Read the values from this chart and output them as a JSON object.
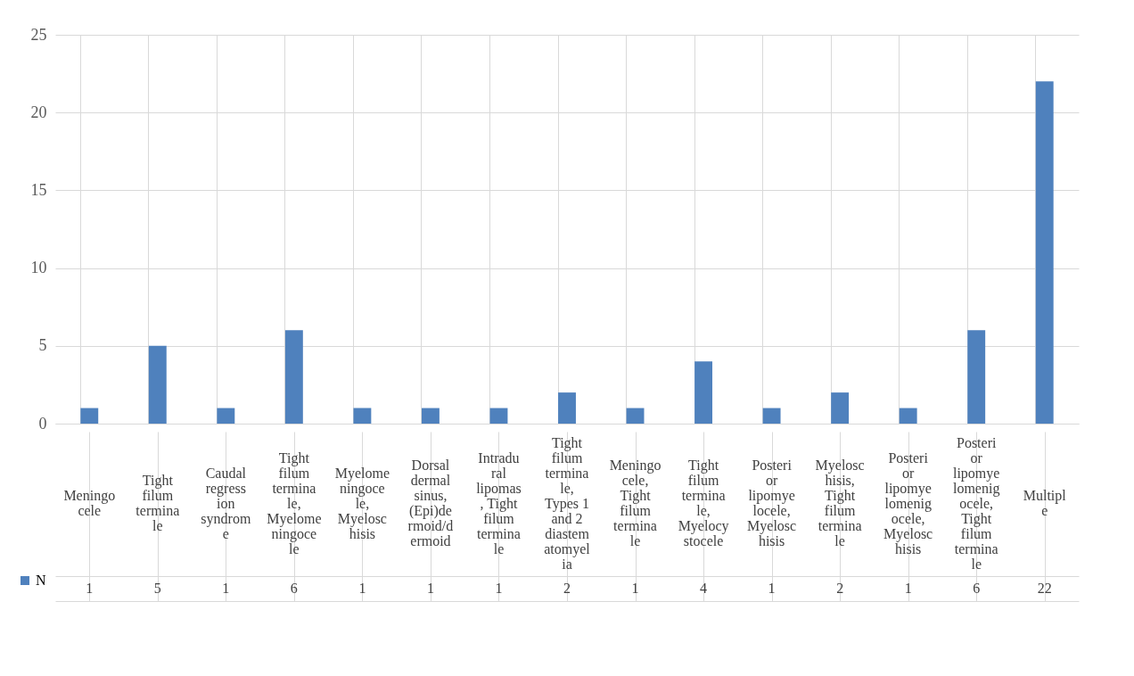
{
  "chart_data": {
    "type": "bar",
    "categories": [
      "Meningocele",
      "Tight filum terminale",
      "Caudal regression syndrome",
      "Tight filum terminale, Myelomeningocele",
      "Myelomeningocele, Myeloschisis",
      "Dorsal dermal sinus, (Epi)dermoid/dermoid",
      "Intradural lipomas, Tight filum terminale",
      "Tight filum terminale, Types 1 and 2 diastematomyelia",
      "Meningocele, Tight filum terminale",
      "Tight filum terminale, Myelocystocele",
      "Posterior lipomyelocele, Myeloschisis",
      "Myeloschisis, Tight filum terminale",
      "Posterior lipomyelomenigocele, Myeloschisis",
      "Posterior lipomyelomenigocele, Tight filum terminale",
      "Multiple"
    ],
    "series": [
      {
        "name": "N",
        "color": "#4f81bd",
        "values": [
          1,
          5,
          1,
          6,
          1,
          1,
          1,
          2,
          1,
          4,
          1,
          2,
          1,
          6,
          22
        ]
      }
    ],
    "ylim": [
      0,
      25
    ],
    "yticks": [
      0,
      5,
      10,
      15,
      20,
      25
    ],
    "grid": true,
    "legend": "bottom left",
    "data_labels": true
  }
}
